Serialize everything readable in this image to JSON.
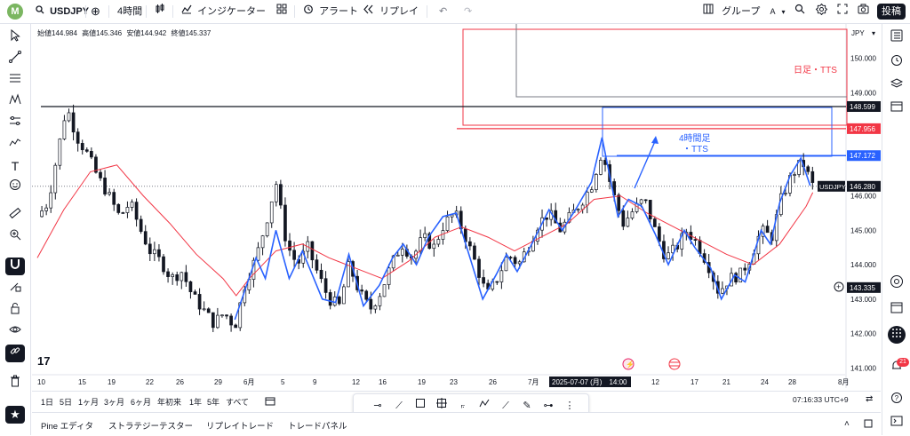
{
  "topbar": {
    "avatar": "M",
    "symbol": "USDJPY",
    "interval": "4時間",
    "indicators": "インジケーター",
    "alert": "アラート",
    "replay": "リプレイ",
    "group": "グループ",
    "group_letter": "A",
    "post": "投稿"
  },
  "legend": {
    "open": "始値144.984",
    "high": "高値145.346",
    "low": "安値144.942",
    "close": "終値145.337"
  },
  "currency": "JPY",
  "chart_data": {
    "type": "candlestick",
    "symbol": "USDJPY",
    "interval": "4h",
    "ylim": [
      140.8,
      151.0
    ],
    "y_ticks": [
      {
        "value": 150.0,
        "label": "150.000"
      },
      {
        "value": 149.0,
        "label": "149.000"
      },
      {
        "value": 146.0,
        "label": "146.000"
      },
      {
        "value": 145.0,
        "label": "145.000"
      },
      {
        "value": 144.0,
        "label": "144.000"
      },
      {
        "value": 143.0,
        "label": "143.000"
      },
      {
        "value": 142.0,
        "label": "142.000"
      },
      {
        "value": 141.0,
        "label": "141.000"
      }
    ],
    "x_ticks": [
      "10",
      "15",
      "19",
      "22",
      "26",
      "29",
      "6月",
      "5",
      "9",
      "12",
      "16",
      "19",
      "23",
      "26",
      "7月",
      "2025-07-07 (月)　14:00",
      "12",
      "17",
      "21",
      "24",
      "28",
      "8月"
    ],
    "price_levels": [
      {
        "value": 148.599,
        "label": "148.599",
        "color": "#131722"
      },
      {
        "value": 147.956,
        "label": "147.956",
        "color": "#f23645"
      },
      {
        "value": 147.172,
        "label": "147.172",
        "color": "#2962ff"
      },
      {
        "value": 146.28,
        "label": "146.280",
        "color": "#131722",
        "tag": "USDJPY"
      },
      {
        "value": 143.335,
        "label": "143.335",
        "color": "#131722",
        "crosshair": true
      }
    ],
    "annotations": [
      {
        "text": "日足・TTS",
        "color": "#f23645"
      },
      {
        "text": "4時間足\n・TTS",
        "color": "#2962ff"
      }
    ],
    "close_path": [
      [
        0,
        145.4
      ],
      [
        0.8,
        145.8
      ],
      [
        1.5,
        147.2
      ],
      [
        2.2,
        148.6
      ],
      [
        3.0,
        147.7
      ],
      [
        3.8,
        147.2
      ],
      [
        4.5,
        146.6
      ],
      [
        5.4,
        146.0
      ],
      [
        6.2,
        145.4
      ],
      [
        7.0,
        145.8
      ],
      [
        7.8,
        145.0
      ],
      [
        8.5,
        144.4
      ],
      [
        9.3,
        144.1
      ],
      [
        10.1,
        143.6
      ],
      [
        10.9,
        143.8
      ],
      [
        11.7,
        143.1
      ],
      [
        12.5,
        142.7
      ],
      [
        13.3,
        142.3
      ],
      [
        14.1,
        142.6
      ],
      [
        14.9,
        142.2
      ],
      [
        15.7,
        143.5
      ],
      [
        16.5,
        144.2
      ],
      [
        17.3,
        145.3
      ],
      [
        18.0,
        146.4
      ],
      [
        18.8,
        144.6
      ],
      [
        19.6,
        144.0
      ],
      [
        20.4,
        144.5
      ],
      [
        21.2,
        143.7
      ],
      [
        22.0,
        143.0
      ],
      [
        22.8,
        142.8
      ],
      [
        23.5,
        144.0
      ],
      [
        24.3,
        143.2
      ],
      [
        25.1,
        142.7
      ],
      [
        25.9,
        143.2
      ],
      [
        26.7,
        144.0
      ],
      [
        27.5,
        144.6
      ],
      [
        28.3,
        144.2
      ],
      [
        29.1,
        144.8
      ],
      [
        29.9,
        144.5
      ],
      [
        30.7,
        145.2
      ],
      [
        31.5,
        145.5
      ],
      [
        32.3,
        144.8
      ],
      [
        33.1,
        144.0
      ],
      [
        33.9,
        143.1
      ],
      [
        34.7,
        143.6
      ],
      [
        35.5,
        144.3
      ],
      [
        36.3,
        144.0
      ],
      [
        37.1,
        144.6
      ],
      [
        37.8,
        145.2
      ],
      [
        38.6,
        145.5
      ],
      [
        39.4,
        145.0
      ],
      [
        40.2,
        145.4
      ],
      [
        41.0,
        145.8
      ],
      [
        41.8,
        146.3
      ],
      [
        42.6,
        147.3
      ],
      [
        43.4,
        146.1
      ],
      [
        44.2,
        145.2
      ],
      [
        45.0,
        145.6
      ],
      [
        45.8,
        145.9
      ],
      [
        46.6,
        145.0
      ],
      [
        47.4,
        144.2
      ],
      [
        48.2,
        144.5
      ],
      [
        49.0,
        145.0
      ],
      [
        49.8,
        144.6
      ],
      [
        50.6,
        144.0
      ],
      [
        51.4,
        143.2
      ],
      [
        52.2,
        143.6
      ],
      [
        53.0,
        143.7
      ],
      [
        53.8,
        144.2
      ],
      [
        54.6,
        145.0
      ],
      [
        55.4,
        144.8
      ],
      [
        56.1,
        145.9
      ],
      [
        56.9,
        146.6
      ],
      [
        57.7,
        147.0
      ],
      [
        58.5,
        146.3
      ]
    ],
    "ma_path": [
      [
        0,
        144.2
      ],
      [
        2,
        145.6
      ],
      [
        4,
        146.7
      ],
      [
        6,
        146.9
      ],
      [
        8,
        146.0
      ],
      [
        10,
        145.2
      ],
      [
        12,
        144.3
      ],
      [
        14,
        143.6
      ],
      [
        15,
        143.1
      ],
      [
        16,
        143.6
      ],
      [
        18,
        144.4
      ],
      [
        20,
        144.6
      ],
      [
        22,
        144.2
      ],
      [
        24,
        143.9
      ],
      [
        26,
        143.6
      ],
      [
        28,
        144.1
      ],
      [
        30,
        144.8
      ],
      [
        32,
        145.1
      ],
      [
        34,
        144.8
      ],
      [
        36,
        144.4
      ],
      [
        38,
        144.8
      ],
      [
        40,
        145.2
      ],
      [
        42,
        145.9
      ],
      [
        44,
        146.0
      ],
      [
        46,
        145.5
      ],
      [
        48,
        145.1
      ],
      [
        50,
        144.7
      ],
      [
        52,
        144.3
      ],
      [
        54,
        144.0
      ],
      [
        56,
        144.6
      ],
      [
        58,
        145.7
      ],
      [
        58.5,
        146.1
      ]
    ],
    "swing_path": [
      [
        14.9,
        142.4
      ],
      [
        16.5,
        144.2
      ],
      [
        17.2,
        143.6
      ],
      [
        18.0,
        145.0
      ],
      [
        19.0,
        143.6
      ],
      [
        20.0,
        144.4
      ],
      [
        21.5,
        143.0
      ],
      [
        22.5,
        142.9
      ],
      [
        23.5,
        144.3
      ],
      [
        24.6,
        142.8
      ],
      [
        25.8,
        143.4
      ],
      [
        26.8,
        144.2
      ],
      [
        27.6,
        144.6
      ],
      [
        28.6,
        144.0
      ],
      [
        29.5,
        144.8
      ],
      [
        30.6,
        145.4
      ],
      [
        31.6,
        145.5
      ],
      [
        33.6,
        143.0
      ],
      [
        34.6,
        143.7
      ],
      [
        35.4,
        144.3
      ],
      [
        36.2,
        143.8
      ],
      [
        37.3,
        144.6
      ],
      [
        38.6,
        145.6
      ],
      [
        39.6,
        145.0
      ],
      [
        40.6,
        145.6
      ],
      [
        41.8,
        146.4
      ],
      [
        42.6,
        147.7
      ],
      [
        43.8,
        145.4
      ],
      [
        44.6,
        145.9
      ],
      [
        45.6,
        145.7
      ],
      [
        46.6,
        144.9
      ],
      [
        47.6,
        144.0
      ],
      [
        48.8,
        145.0
      ],
      [
        49.6,
        144.5
      ],
      [
        50.8,
        143.9
      ],
      [
        51.6,
        143.0
      ],
      [
        52.6,
        143.7
      ],
      [
        53.4,
        143.5
      ],
      [
        54.6,
        145.0
      ],
      [
        55.3,
        144.6
      ],
      [
        56.0,
        145.8
      ],
      [
        56.8,
        146.6
      ],
      [
        57.6,
        147.1
      ],
      [
        58.3,
        146.3
      ]
    ]
  },
  "ranges": [
    "1日",
    "5日",
    "1ヶ月",
    "3ヶ月",
    "6ヶ月",
    "年初来",
    "1年",
    "5年",
    "すべて"
  ],
  "bottom_tabs": [
    "Pine エディタ",
    "ストラテジーテスター",
    "リプレイトレード",
    "トレードパネル"
  ],
  "clock": "07:16:33 UTC+9",
  "notifications_count": "21",
  "colors": {
    "up": "#131722",
    "down": "#131722",
    "ma": "#f23645",
    "swing": "#2962ff",
    "daily_box": "#f23645",
    "h4_box": "#2962ff"
  }
}
